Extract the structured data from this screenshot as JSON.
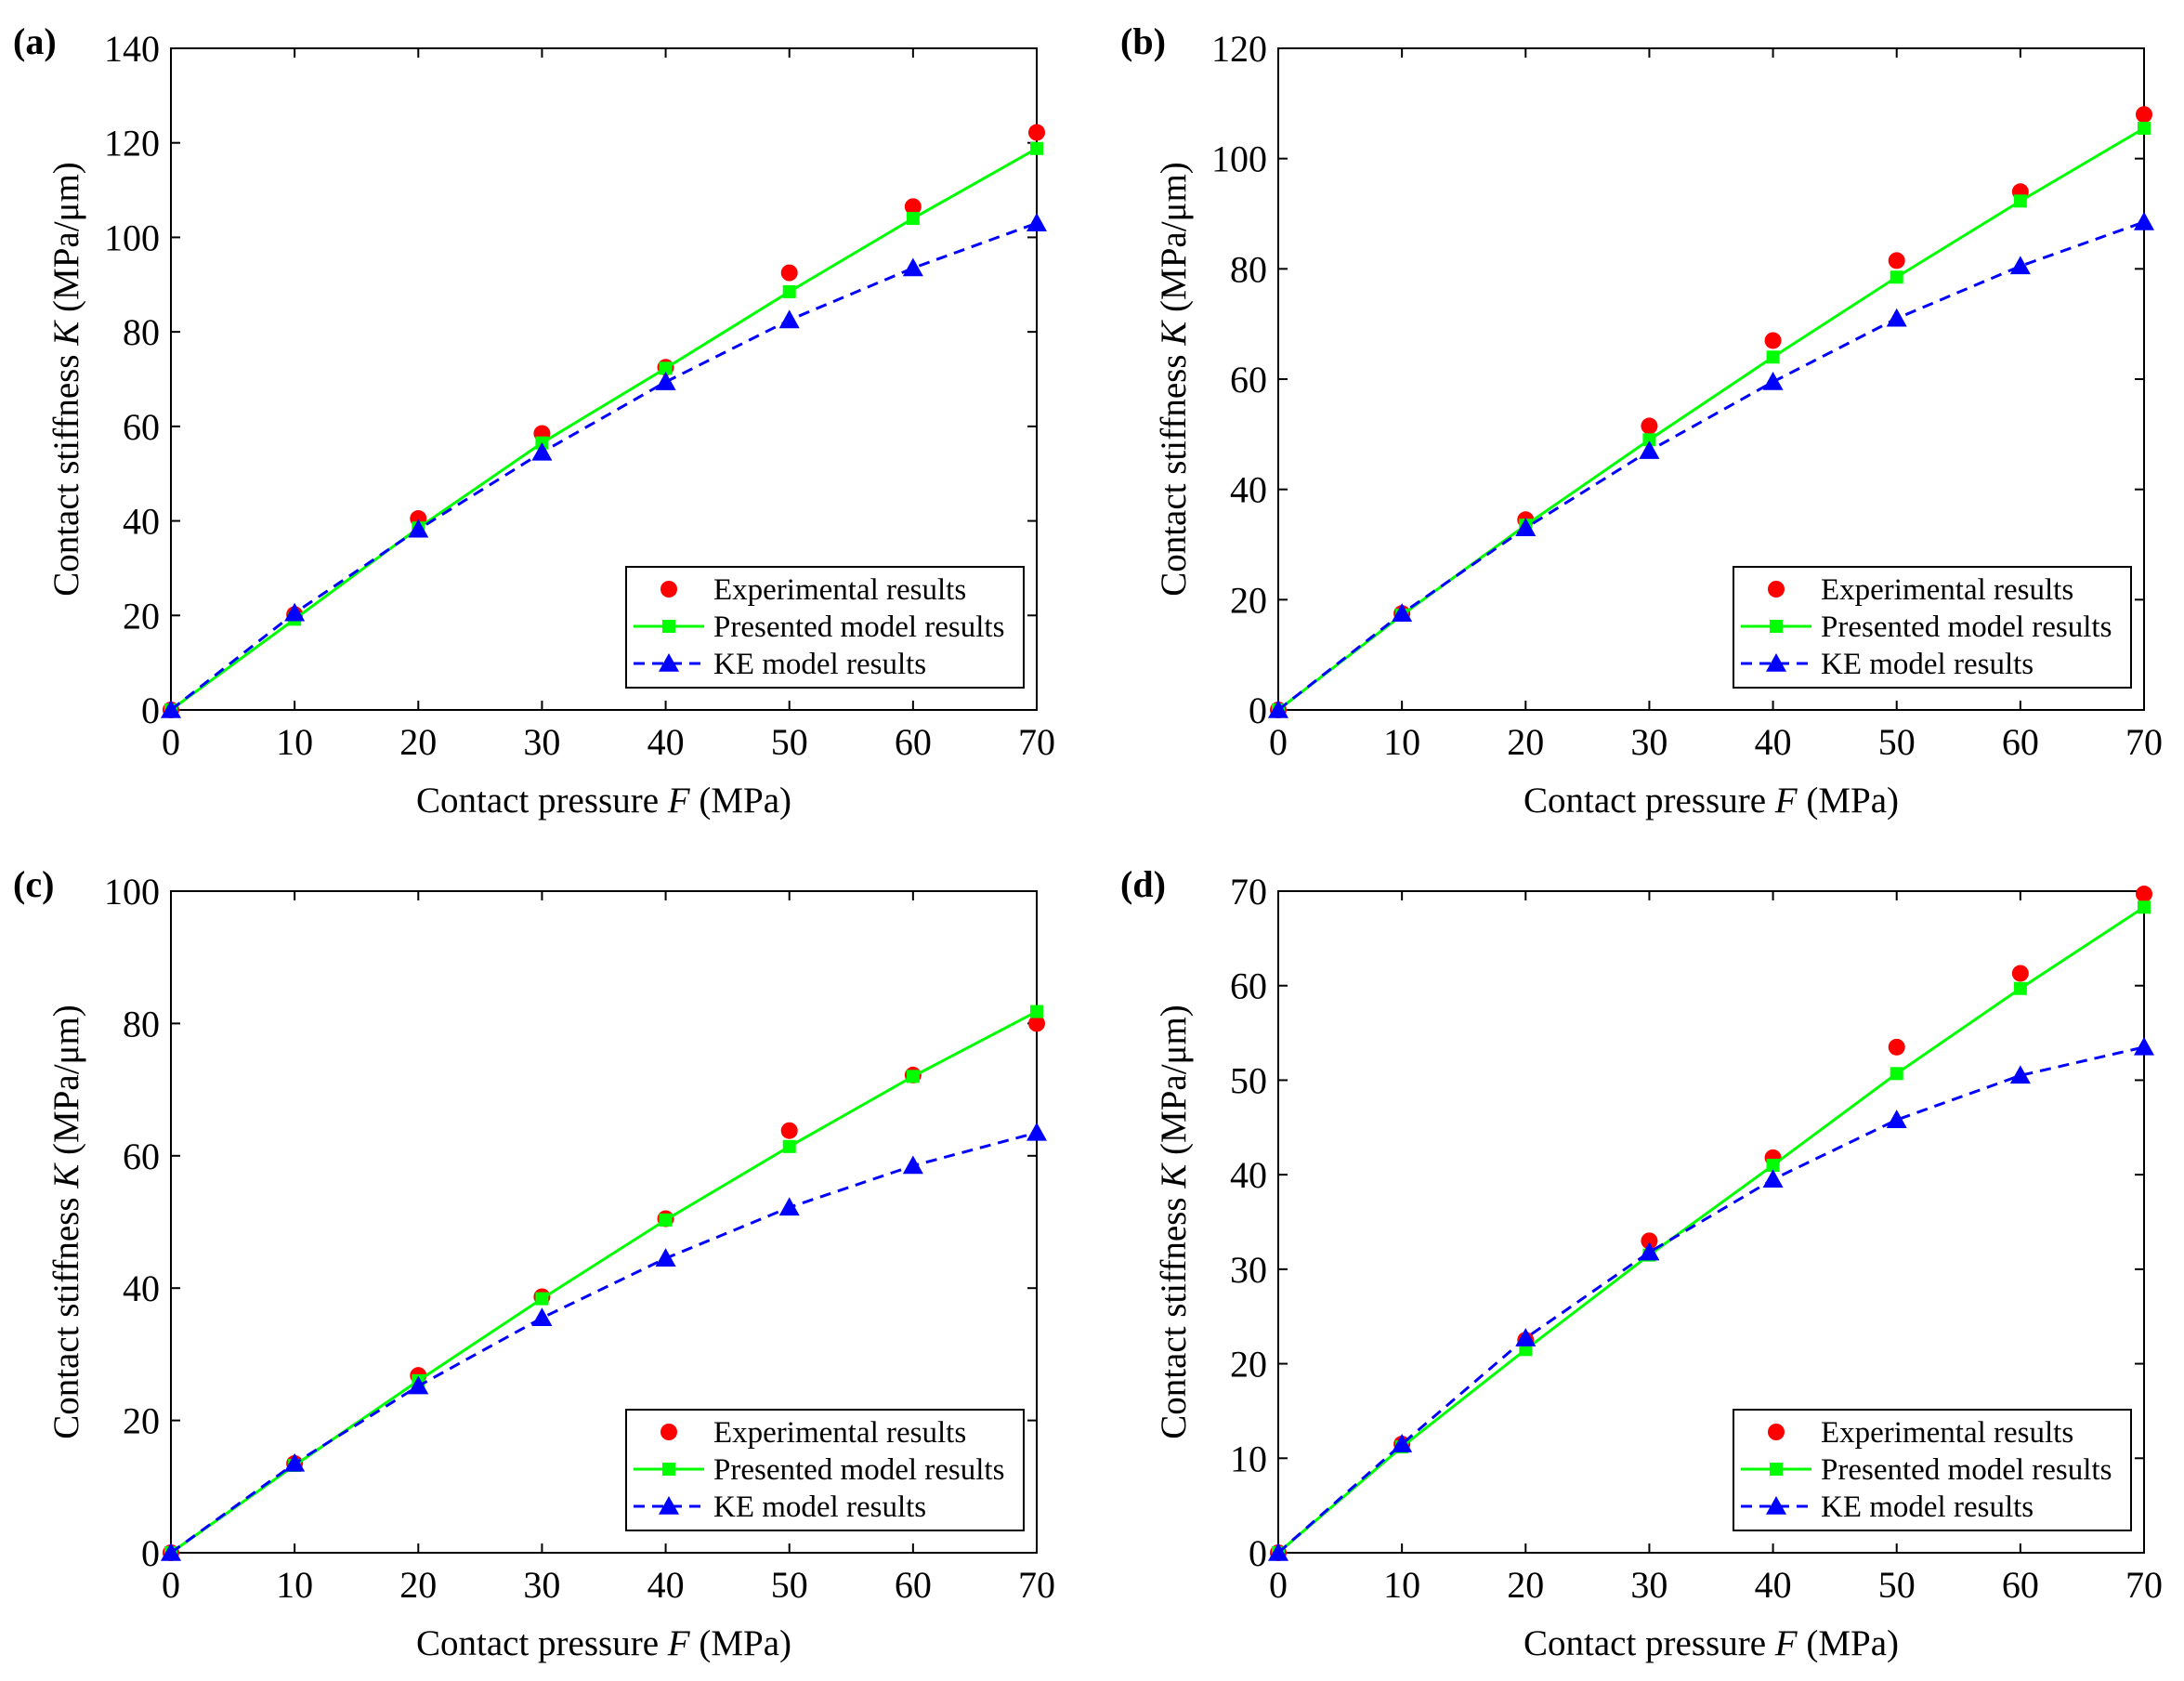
{
  "chart_data": [
    {
      "panel": "(a)",
      "type": "line",
      "xlabel": "Contact pressure",
      "xlabel_var": "F",
      "xlabel_unit": "(MPa)",
      "ylabel": "Contact stiffness",
      "ylabel_var": "K",
      "ylabel_unit": "(MPa/μm)",
      "xlim": [
        0,
        70
      ],
      "ylim": [
        0,
        140
      ],
      "xticks": [
        0,
        10,
        20,
        30,
        40,
        50,
        60,
        70
      ],
      "yticks": [
        0,
        20,
        40,
        60,
        80,
        100,
        120,
        140
      ],
      "grid": false,
      "legend": "bottom-right",
      "x": [
        0,
        10,
        20,
        30,
        40,
        50,
        60,
        70
      ],
      "series": [
        {
          "name": "Experimental results",
          "style": "markers",
          "marker": "circle",
          "color": "#ff0000",
          "values": [
            0,
            20.2,
            40.5,
            58.5,
            72.5,
            92.5,
            106.5,
            122.2
          ]
        },
        {
          "name": "Presented model results",
          "style": "solid",
          "marker": "square",
          "color": "#00ff00",
          "values": [
            0,
            19.2,
            38.5,
            56.5,
            72.3,
            88.5,
            104,
            118.8
          ]
        },
        {
          "name": "KE model results",
          "style": "dashed",
          "marker": "triangle",
          "color": "#0000ff",
          "values": [
            0,
            20.5,
            38.2,
            54.5,
            69.4,
            82.5,
            93.5,
            103
          ]
        }
      ]
    },
    {
      "panel": "(b)",
      "type": "line",
      "xlabel": "Contact pressure",
      "xlabel_var": "F",
      "xlabel_unit": "(MPa)",
      "ylabel": "Contact stiffness",
      "ylabel_var": "K",
      "ylabel_unit": "(MPa/μm)",
      "xlim": [
        0,
        70
      ],
      "ylim": [
        0,
        120
      ],
      "xticks": [
        0,
        10,
        20,
        30,
        40,
        50,
        60,
        70
      ],
      "yticks": [
        0,
        20,
        40,
        60,
        80,
        100,
        120
      ],
      "grid": false,
      "legend": "bottom-right",
      "x": [
        0,
        10,
        20,
        30,
        40,
        50,
        60,
        70
      ],
      "series": [
        {
          "name": "Experimental results",
          "style": "markers",
          "marker": "circle",
          "color": "#ff0000",
          "values": [
            0,
            17.5,
            34.5,
            51.5,
            67,
            81.5,
            94,
            108
          ]
        },
        {
          "name": "Presented model results",
          "style": "solid",
          "marker": "square",
          "color": "#00ff00",
          "values": [
            0,
            17.2,
            33.5,
            49,
            64,
            78.5,
            92.3,
            105.5
          ]
        },
        {
          "name": "KE model results",
          "style": "dashed",
          "marker": "triangle",
          "color": "#0000ff",
          "values": [
            0,
            17.5,
            33,
            47,
            59.5,
            71,
            80.5,
            88.5
          ]
        }
      ]
    },
    {
      "panel": "(c)",
      "type": "line",
      "xlabel": "Contact pressure",
      "xlabel_var": "F",
      "xlabel_unit": "(MPa)",
      "ylabel": "Contact stiffness",
      "ylabel_var": "K",
      "ylabel_unit": "(MPa/μm)",
      "xlim": [
        0,
        70
      ],
      "ylim": [
        0,
        100
      ],
      "xticks": [
        0,
        10,
        20,
        30,
        40,
        50,
        60,
        70
      ],
      "yticks": [
        0,
        20,
        40,
        60,
        80,
        100
      ],
      "grid": false,
      "legend": "bottom-right",
      "x": [
        0,
        10,
        20,
        30,
        40,
        50,
        60,
        70
      ],
      "series": [
        {
          "name": "Experimental results",
          "style": "markers",
          "marker": "circle",
          "color": "#ff0000",
          "values": [
            0,
            13.5,
            26.8,
            38.7,
            50.5,
            63.8,
            72.2,
            80
          ]
        },
        {
          "name": "Presented model results",
          "style": "solid",
          "marker": "square",
          "color": "#00ff00",
          "values": [
            0,
            13.2,
            26,
            38.4,
            50.3,
            61.4,
            72,
            81.8
          ]
        },
        {
          "name": "KE model results",
          "style": "dashed",
          "marker": "triangle",
          "color": "#0000ff",
          "values": [
            0,
            13.5,
            25.2,
            35.5,
            44.5,
            52.2,
            58.5,
            63.5
          ]
        }
      ]
    },
    {
      "panel": "(d)",
      "type": "line",
      "xlabel": "Contact pressure",
      "xlabel_var": "F",
      "xlabel_unit": "(MPa)",
      "ylabel": "Contact stiffness",
      "ylabel_var": "K",
      "ylabel_unit": "(MPa/μm)",
      "xlim": [
        0,
        70
      ],
      "ylim": [
        0,
        70
      ],
      "xticks": [
        0,
        10,
        20,
        30,
        40,
        50,
        60,
        70
      ],
      "yticks": [
        0,
        10,
        20,
        30,
        40,
        50,
        60,
        70
      ],
      "grid": false,
      "legend": "bottom-right",
      "x": [
        0,
        10,
        20,
        30,
        40,
        50,
        60,
        70
      ],
      "series": [
        {
          "name": "Experimental results",
          "style": "markers",
          "marker": "circle",
          "color": "#ff0000",
          "values": [
            0,
            11.5,
            22.5,
            33,
            41.8,
            53.5,
            61.3,
            69.7
          ]
        },
        {
          "name": "Presented model results",
          "style": "solid",
          "marker": "square",
          "color": "#00ff00",
          "values": [
            0,
            11.2,
            21.5,
            31.5,
            41,
            50.7,
            59.7,
            68.3
          ]
        },
        {
          "name": "KE model results",
          "style": "dashed",
          "marker": "triangle",
          "color": "#0000ff",
          "values": [
            0,
            11.5,
            22.7,
            31.8,
            39.5,
            45.8,
            50.5,
            53.5
          ]
        }
      ]
    }
  ]
}
